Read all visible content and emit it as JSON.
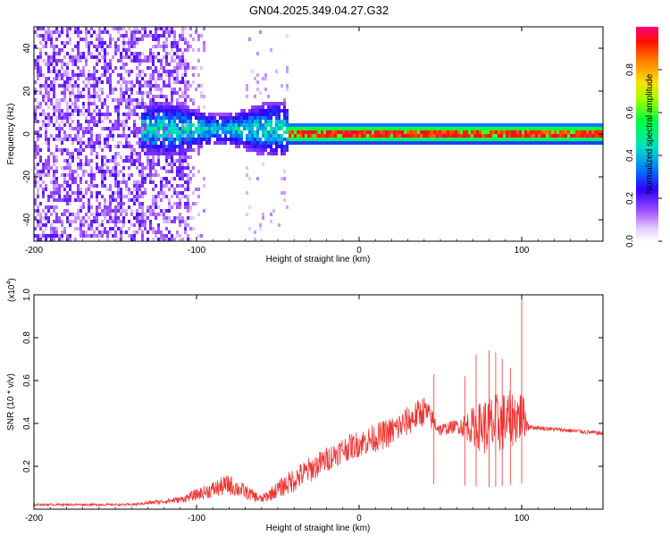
{
  "title": "GN04.2025.349.04.27.G32",
  "chart_data": [
    {
      "type": "heatmap",
      "xlabel": "Height of straight line (km)",
      "ylabel": "Frequency (Hz)",
      "xlim": [
        -200,
        150
      ],
      "ylim": [
        -50,
        50
      ],
      "x_ticks": [
        -200,
        -100,
        0,
        100
      ],
      "y_ticks": [
        -40,
        -20,
        0,
        20,
        40
      ],
      "colorbar": {
        "label": "Normalized spectral amplitude",
        "range": [
          0.0,
          1.0
        ],
        "ticks": [
          0.0,
          0.2,
          0.4,
          0.6,
          0.8
        ],
        "tick_labels": [
          "0.0",
          "0.2",
          "0.4",
          "0.6",
          "0.8"
        ],
        "colors": [
          "#ffffff",
          "#c8a0ff",
          "#7d00ff",
          "#0000ff",
          "#00c8ff",
          "#00ff80",
          "#ffff00",
          "#ff8000",
          "#ff0000",
          "#ff0080"
        ]
      },
      "regions": [
        {
          "x_range": [
            -200,
            -105
          ],
          "freq_range": [
            -50,
            50
          ],
          "amplitude": 0.15,
          "description_level": "low scattered"
        },
        {
          "x_range": [
            -130,
            -45
          ],
          "freq_range": [
            -10,
            12
          ],
          "amplitude": 0.35
        },
        {
          "x_range": [
            -45,
            150
          ],
          "freq_range": [
            -3,
            5
          ],
          "amplitude": 0.95,
          "center_freq": 1
        }
      ]
    },
    {
      "type": "line",
      "xlabel": "Height of straight line (km)",
      "ylabel": "SNR (10 * v/v)",
      "y_multiplier_label": "(x10",
      "y_multiplier_exp": "4",
      "xlim": [
        -200,
        150
      ],
      "ylim": [
        0,
        1.0
      ],
      "x_ticks": [
        -200,
        -100,
        0,
        100
      ],
      "y_ticks": [
        0.2,
        0.4,
        0.6,
        0.8,
        1.0
      ],
      "y_tick_labels": [
        "0.2",
        "0.4",
        "0.6",
        "0.8",
        "1.0"
      ],
      "color": "#ee3333",
      "envelope": [
        {
          "x": -200,
          "base": 0.02,
          "noise": 0.01
        },
        {
          "x": -140,
          "base": 0.02,
          "noise": 0.01
        },
        {
          "x": -110,
          "base": 0.04,
          "noise": 0.03
        },
        {
          "x": -80,
          "base": 0.1,
          "noise": 0.1
        },
        {
          "x": -60,
          "base": 0.04,
          "noise": 0.04
        },
        {
          "x": -40,
          "base": 0.12,
          "noise": 0.12
        },
        {
          "x": -10,
          "base": 0.26,
          "noise": 0.12
        },
        {
          "x": 20,
          "base": 0.34,
          "noise": 0.14
        },
        {
          "x": 40,
          "base": 0.44,
          "noise": 0.14
        },
        {
          "x": 50,
          "base": 0.36,
          "noise": 0.06
        },
        {
          "x": 60,
          "base": 0.38,
          "noise": 0.06
        },
        {
          "x": 80,
          "base": 0.34,
          "noise": 0.3
        },
        {
          "x": 100,
          "base": 0.4,
          "noise": 0.25
        },
        {
          "x": 105,
          "base": 0.38,
          "noise": 0.02
        },
        {
          "x": 150,
          "base": 0.35,
          "noise": 0.02
        }
      ],
      "spikes": [
        {
          "x": 65,
          "y": 0.62
        },
        {
          "x": 72,
          "y": 0.72
        },
        {
          "x": 80,
          "y": 0.74
        },
        {
          "x": 84,
          "y": 0.73
        },
        {
          "x": 88,
          "y": 0.7
        },
        {
          "x": 93,
          "y": 0.66
        },
        {
          "x": 100,
          "y": 1.0
        },
        {
          "x": 46,
          "y": 0.63
        }
      ]
    }
  ]
}
